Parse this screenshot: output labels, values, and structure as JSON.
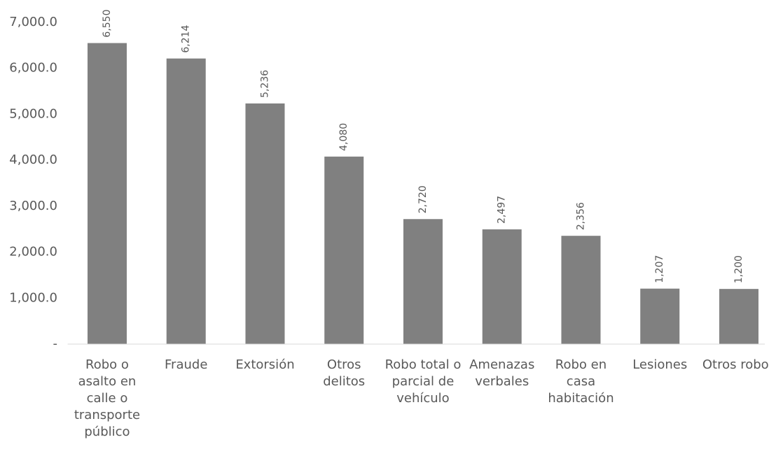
{
  "chart_data": {
    "type": "bar",
    "categories": [
      "Robo o asalto en calle o transporte público",
      "Fraude",
      "Extorsión",
      "Otros delitos",
      "Robo total o parcial de vehículo",
      "Amenazas verbales",
      "Robo en casa habitación",
      "Lesiones",
      "Otros robos"
    ],
    "values": [
      6550,
      6214,
      5236,
      4080,
      2720,
      2497,
      2356,
      1207,
      1200
    ],
    "value_labels": [
      "6,550",
      "6,214",
      "5,236",
      "4,080",
      "2,720",
      "2,497",
      "2,356",
      "1,207",
      "1,200"
    ],
    "color": "#808080",
    "ylim": [
      0,
      7000
    ],
    "yticks": [
      {
        "value": 0,
        "label": "-"
      },
      {
        "value": 1000,
        "label": "1,000.0"
      },
      {
        "value": 2000,
        "label": "2,000.0"
      },
      {
        "value": 3000,
        "label": "3,000.0"
      },
      {
        "value": 4000,
        "label": "4,000.0"
      },
      {
        "value": 5000,
        "label": "5,000.0"
      },
      {
        "value": 6000,
        "label": "6,000.0"
      },
      {
        "value": 7000,
        "label": "7,000.0"
      }
    ],
    "grid": false
  }
}
